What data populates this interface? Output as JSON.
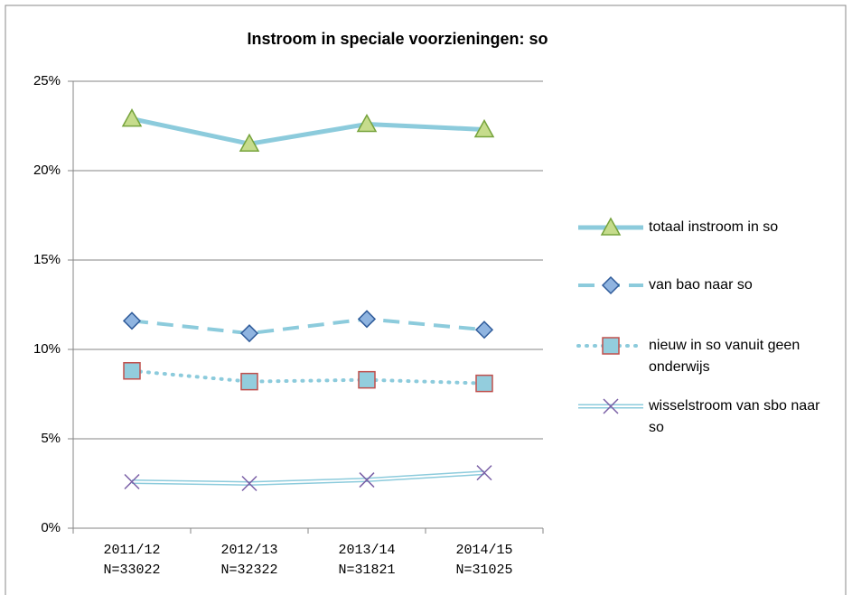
{
  "chart_data": {
    "type": "line",
    "title": "Instroom in speciale voorzieningen: so",
    "categories": [
      "2011/12",
      "2012/13",
      "2013/14",
      "2014/15"
    ],
    "category_counts": [
      "N=33022",
      "N=32322",
      "N=31821",
      "N=31025"
    ],
    "ylim": [
      0,
      25
    ],
    "yticks": [
      {
        "value": 0,
        "label": "0%"
      },
      {
        "value": 5,
        "label": "5%"
      },
      {
        "value": 10,
        "label": "10%"
      },
      {
        "value": 15,
        "label": "15%"
      },
      {
        "value": 20,
        "label": "20%"
      },
      {
        "value": 25,
        "label": "25%"
      }
    ],
    "grid": true,
    "legend": "right",
    "series": [
      {
        "name": "totaal instroom in so",
        "color": "#8ccbdc",
        "line": "solid",
        "marker": "triangle",
        "marker_fill": "#c6dc8c",
        "marker_stroke": "#76a33c",
        "values": [
          22.9,
          21.5,
          22.6,
          22.3
        ]
      },
      {
        "name": "van bao naar so",
        "color": "#8ccbdc",
        "line": "dashed",
        "marker": "diamond",
        "marker_fill": "#8fb4e0",
        "marker_stroke": "#2f5b9a",
        "values": [
          11.6,
          10.9,
          11.7,
          11.1
        ]
      },
      {
        "name": "nieuw in so vanuit geen onderwijs",
        "color": "#8ccbdc",
        "line": "dotted",
        "marker": "square",
        "marker_fill": "#93cddd",
        "marker_stroke": "#c0504d",
        "values": [
          8.8,
          8.2,
          8.3,
          8.1
        ]
      },
      {
        "name": "wisselstroom van sbo naar so",
        "color": "#8ccbdc",
        "line": "double",
        "marker": "x",
        "marker_fill": "none",
        "marker_stroke": "#7a5fa6",
        "values": [
          2.6,
          2.5,
          2.7,
          3.1
        ]
      }
    ]
  }
}
